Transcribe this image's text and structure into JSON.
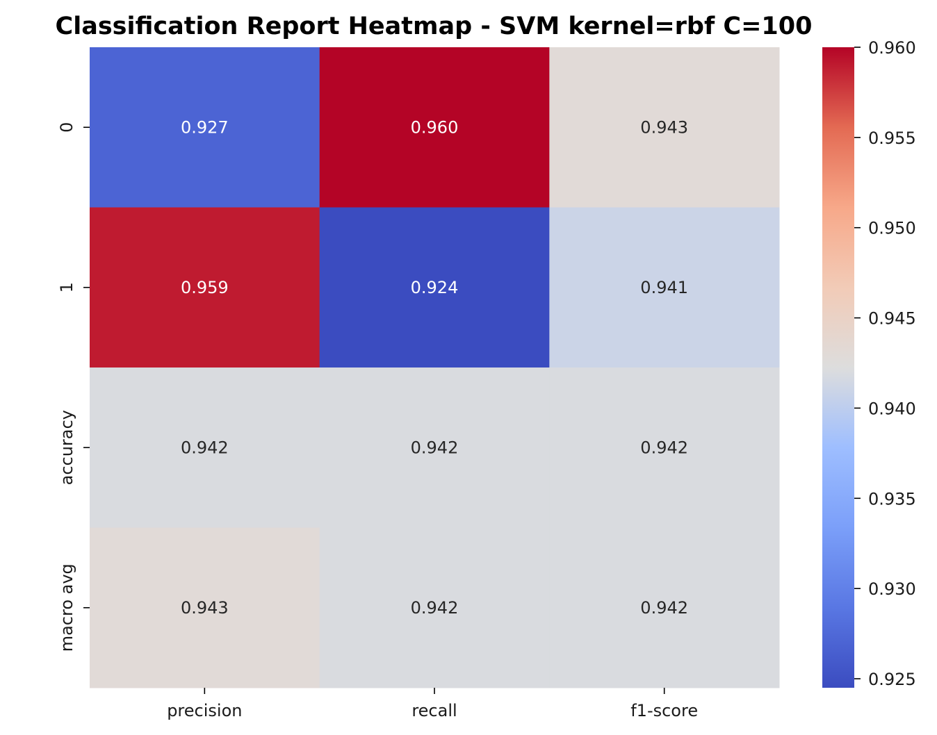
{
  "chart_data": {
    "type": "heatmap",
    "title": "Classification Report Heatmap - SVM kernel=rbf C=100",
    "columns": [
      "precision",
      "recall",
      "f1-score"
    ],
    "rows": [
      "0",
      "1",
      "accuracy",
      "macro avg"
    ],
    "values": [
      [
        0.927,
        0.96,
        0.943
      ],
      [
        0.959,
        0.924,
        0.941
      ],
      [
        0.942,
        0.942,
        0.942
      ],
      [
        0.943,
        0.942,
        0.942
      ]
    ],
    "value_format": "0.000",
    "colormap": "coolwarm",
    "color_range": [
      0.9245,
      0.96
    ],
    "colorbar": {
      "ticks": [
        0.925,
        0.93,
        0.935,
        0.94,
        0.945,
        0.95,
        0.955,
        0.96
      ],
      "tick_labels": [
        "0.925",
        "0.930",
        "0.935",
        "0.940",
        "0.945",
        "0.950",
        "0.955",
        "0.960"
      ]
    }
  }
}
